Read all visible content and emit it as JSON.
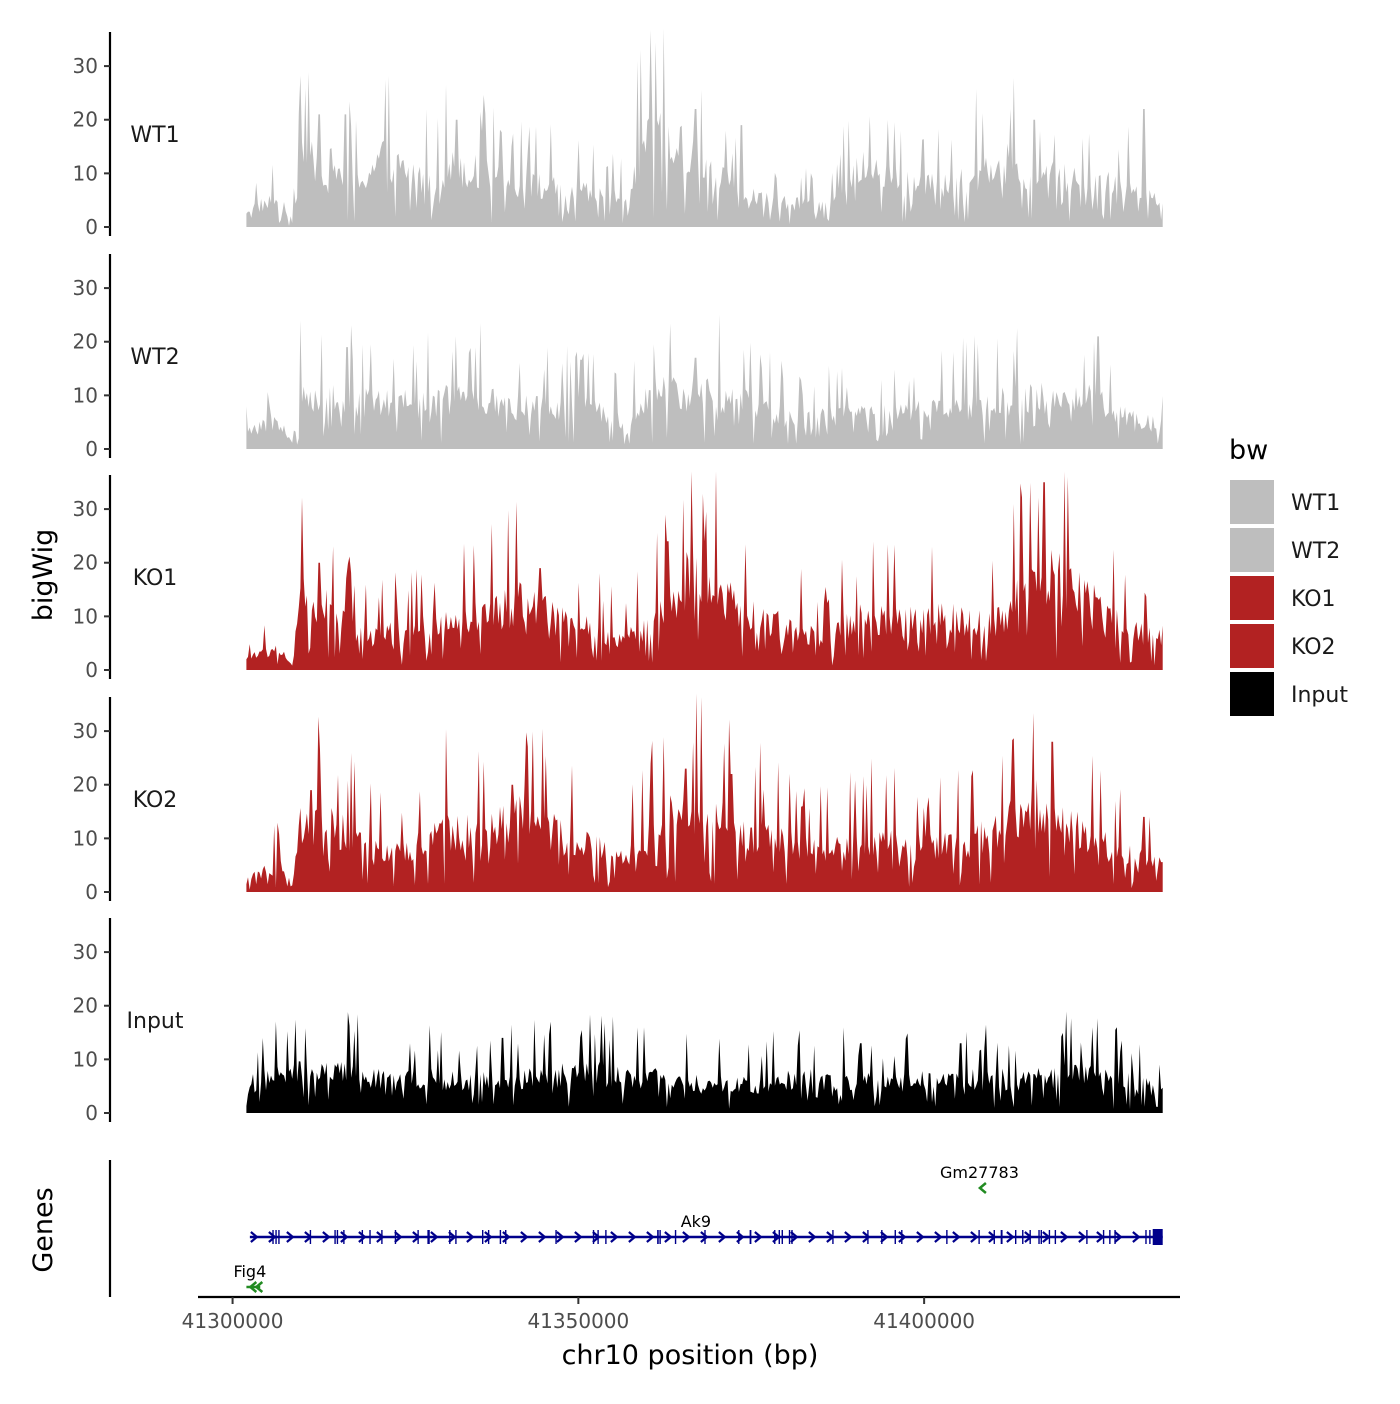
{
  "chart_data": {
    "type": "area",
    "y_axis_title": "bigWig",
    "x_axis_title": "chr10 position (bp)",
    "y_ticks": [
      0,
      10,
      20,
      30
    ],
    "y_range": [
      0,
      37
    ],
    "x_ticks": [
      41300000,
      41350000,
      41400000
    ],
    "x_tick_labels": [
      "41300000",
      "41350000",
      "41400000"
    ],
    "x_range": [
      41295000,
      41437000
    ],
    "data_x_range": [
      41302000,
      41434500
    ],
    "tracks": [
      {
        "name": "WT1",
        "color": "#BEBEBE",
        "anchors": [
          [
            0,
            3
          ],
          [
            0.035,
            5
          ],
          [
            0.05,
            1
          ],
          [
            0.06,
            12
          ],
          [
            0.09,
            11
          ],
          [
            0.12,
            8
          ],
          [
            0.15,
            12
          ],
          [
            0.2,
            8
          ],
          [
            0.23,
            11
          ],
          [
            0.28,
            8
          ],
          [
            0.33,
            7
          ],
          [
            0.37,
            6
          ],
          [
            0.41,
            5
          ],
          [
            0.44,
            16
          ],
          [
            0.48,
            14
          ],
          [
            0.5,
            11
          ],
          [
            0.53,
            7
          ],
          [
            0.56,
            5
          ],
          [
            0.6,
            4
          ],
          [
            0.64,
            4
          ],
          [
            0.67,
            11
          ],
          [
            0.72,
            8
          ],
          [
            0.77,
            7
          ],
          [
            0.82,
            12
          ],
          [
            0.87,
            9
          ],
          [
            0.92,
            8
          ],
          [
            0.97,
            7
          ],
          [
            1,
            5
          ]
        ],
        "peaks": [
          [
            0.08,
            21
          ],
          [
            0.108,
            21
          ],
          [
            0.23,
            20
          ],
          [
            0.49,
            22
          ],
          [
            0.54,
            19
          ],
          [
            0.7,
            20
          ],
          [
            0.86,
            20
          ],
          [
            0.98,
            22
          ]
        ]
      },
      {
        "name": "WT2",
        "color": "#BEBEBE",
        "anchors": [
          [
            0,
            3
          ],
          [
            0.035,
            5
          ],
          [
            0.05,
            1
          ],
          [
            0.06,
            10
          ],
          [
            0.1,
            9
          ],
          [
            0.14,
            8
          ],
          [
            0.18,
            8
          ],
          [
            0.22,
            9
          ],
          [
            0.28,
            8
          ],
          [
            0.33,
            7
          ],
          [
            0.38,
            7
          ],
          [
            0.41,
            5
          ],
          [
            0.45,
            10
          ],
          [
            0.5,
            10
          ],
          [
            0.55,
            8
          ],
          [
            0.6,
            5
          ],
          [
            0.65,
            6
          ],
          [
            0.7,
            6
          ],
          [
            0.75,
            7
          ],
          [
            0.8,
            8
          ],
          [
            0.86,
            9
          ],
          [
            0.92,
            9
          ],
          [
            0.96,
            6
          ],
          [
            1,
            4
          ]
        ],
        "peaks": [
          [
            0.11,
            19
          ],
          [
            0.25,
            19
          ],
          [
            0.49,
            17
          ],
          [
            0.93,
            21
          ]
        ]
      },
      {
        "name": "KO1",
        "color": "#B22222",
        "anchors": [
          [
            0,
            2
          ],
          [
            0.035,
            4
          ],
          [
            0.05,
            1
          ],
          [
            0.06,
            13
          ],
          [
            0.1,
            10
          ],
          [
            0.13,
            6
          ],
          [
            0.18,
            7
          ],
          [
            0.22,
            8
          ],
          [
            0.27,
            10
          ],
          [
            0.3,
            12
          ],
          [
            0.34,
            9
          ],
          [
            0.38,
            7
          ],
          [
            0.41,
            5
          ],
          [
            0.46,
            11
          ],
          [
            0.48,
            16
          ],
          [
            0.51,
            15
          ],
          [
            0.54,
            10
          ],
          [
            0.58,
            8
          ],
          [
            0.63,
            6
          ],
          [
            0.67,
            9
          ],
          [
            0.72,
            9
          ],
          [
            0.77,
            9
          ],
          [
            0.82,
            9
          ],
          [
            0.85,
            14
          ],
          [
            0.88,
            18
          ],
          [
            0.92,
            13
          ],
          [
            0.96,
            7
          ],
          [
            1,
            6
          ]
        ],
        "peaks": [
          [
            0.08,
            20
          ],
          [
            0.32,
            19
          ],
          [
            0.46,
            24
          ],
          [
            0.5,
            24
          ],
          [
            0.87,
            35
          ],
          [
            0.9,
            19
          ]
        ]
      },
      {
        "name": "KO2",
        "color": "#B22222",
        "anchors": [
          [
            0,
            2
          ],
          [
            0.035,
            5
          ],
          [
            0.05,
            1
          ],
          [
            0.06,
            13
          ],
          [
            0.1,
            11
          ],
          [
            0.14,
            7
          ],
          [
            0.18,
            8
          ],
          [
            0.22,
            11
          ],
          [
            0.27,
            11
          ],
          [
            0.3,
            15
          ],
          [
            0.34,
            10
          ],
          [
            0.38,
            8
          ],
          [
            0.41,
            6
          ],
          [
            0.46,
            13
          ],
          [
            0.5,
            15
          ],
          [
            0.54,
            11
          ],
          [
            0.58,
            9
          ],
          [
            0.63,
            7
          ],
          [
            0.68,
            9
          ],
          [
            0.72,
            8
          ],
          [
            0.77,
            8
          ],
          [
            0.82,
            11
          ],
          [
            0.86,
            16
          ],
          [
            0.9,
            12
          ],
          [
            0.95,
            7
          ],
          [
            1,
            6
          ]
        ],
        "peaks": [
          [
            0.07,
            19
          ],
          [
            0.29,
            20
          ],
          [
            0.48,
            23
          ],
          [
            0.53,
            22
          ],
          [
            0.88,
            28
          ],
          [
            0.98,
            14
          ]
        ]
      },
      {
        "name": "Input",
        "color": "#000000",
        "anchors": [
          [
            0,
            5
          ],
          [
            0.05,
            7
          ],
          [
            0.1,
            7
          ],
          [
            0.15,
            6
          ],
          [
            0.2,
            6
          ],
          [
            0.25,
            6
          ],
          [
            0.3,
            6
          ],
          [
            0.35,
            7
          ],
          [
            0.4,
            7
          ],
          [
            0.45,
            6
          ],
          [
            0.5,
            5
          ],
          [
            0.55,
            5
          ],
          [
            0.6,
            6
          ],
          [
            0.65,
            6
          ],
          [
            0.7,
            5
          ],
          [
            0.75,
            6
          ],
          [
            0.8,
            6
          ],
          [
            0.85,
            6
          ],
          [
            0.9,
            7
          ],
          [
            0.95,
            6
          ],
          [
            1,
            4
          ]
        ],
        "peaks": [
          [
            0.28,
            14
          ],
          [
            0.4,
            18
          ],
          [
            0.67,
            13
          ],
          [
            0.78,
            13
          ],
          [
            0.95,
            16
          ]
        ]
      }
    ],
    "legend": {
      "title": "bw",
      "items": [
        {
          "label": "WT1",
          "color": "#BEBEBE"
        },
        {
          "label": "WT2",
          "color": "#BEBEBE"
        },
        {
          "label": "KO1",
          "color": "#B22222"
        },
        {
          "label": "KO2",
          "color": "#B22222"
        },
        {
          "label": "Input",
          "color": "#000000"
        }
      ]
    },
    "genes_panel": {
      "title": "Genes",
      "genes": [
        {
          "name": "Ak9",
          "start": 41302500,
          "end": 41434500,
          "strand": "+",
          "color": "#00008B",
          "row": 2,
          "label_x": 41367000
        },
        {
          "name": "Gm27783",
          "start": 41408200,
          "end": 41408800,
          "strand": "-",
          "color": "#228B22",
          "row": 1,
          "label_x": 41408000
        },
        {
          "name": "Fig4",
          "start": 41302000,
          "end": 41304000,
          "strand": "-",
          "color": "#228B22",
          "row": 3,
          "label_x": 41302500
        }
      ]
    }
  }
}
